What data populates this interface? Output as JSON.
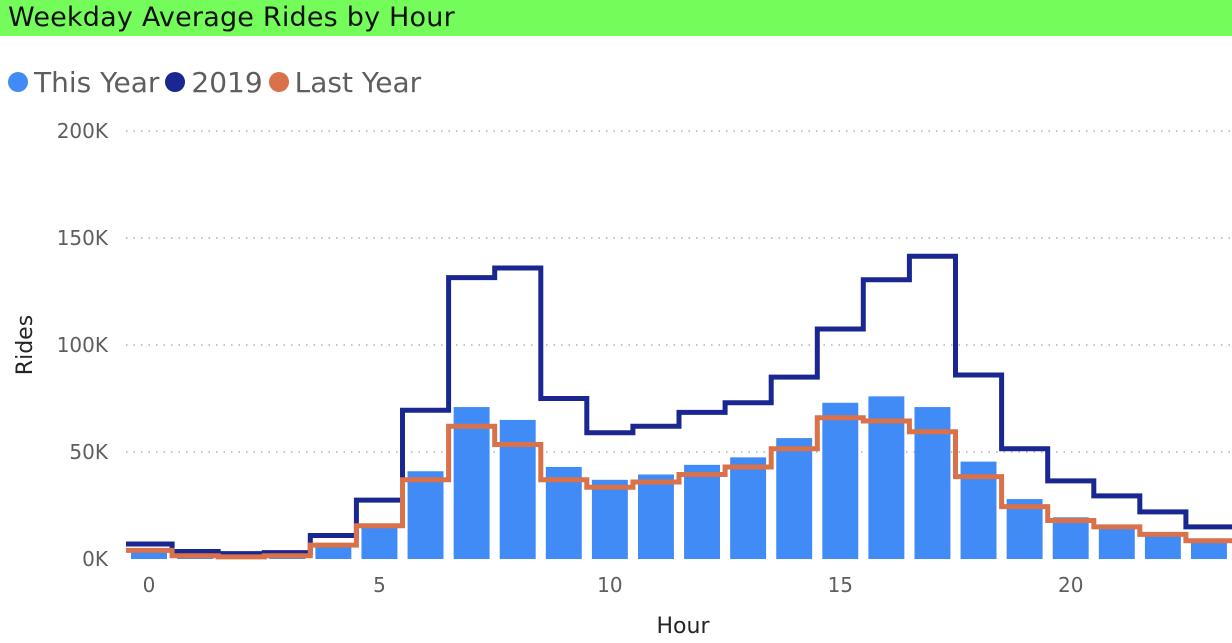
{
  "chart_data": {
    "type": "bar",
    "title": "Weekday Average Rides by Hour",
    "xlabel": "Hour",
    "ylabel": "Rides",
    "x": [
      0,
      1,
      2,
      3,
      4,
      5,
      6,
      7,
      8,
      9,
      10,
      11,
      12,
      13,
      14,
      15,
      16,
      17,
      18,
      19,
      20,
      21,
      22,
      23
    ],
    "x_ticks": [
      0,
      5,
      10,
      15,
      20
    ],
    "x_tick_labels": [
      "0",
      "5",
      "10",
      "15",
      "20"
    ],
    "y_ticks": [
      0,
      50000,
      100000,
      150000,
      200000
    ],
    "y_tick_labels": [
      "0K",
      "50K",
      "100K",
      "150K",
      "200K"
    ],
    "ylim": [
      0,
      200000
    ],
    "grid": "horizontal dotted",
    "legend_position": "top-left",
    "series": [
      {
        "name": "This Year",
        "kind": "bar",
        "color": "#418bf7",
        "values": [
          4000,
          2000,
          1500,
          2000,
          7500,
          16000,
          41000,
          71000,
          65000,
          43000,
          37000,
          39500,
          44000,
          47500,
          56500,
          73000,
          76000,
          71000,
          45500,
          28000,
          19500,
          16000,
          12000,
          9000
        ]
      },
      {
        "name": "2019",
        "kind": "step",
        "color": "#1a2791",
        "values": [
          7000,
          3500,
          2500,
          3000,
          11000,
          27500,
          69500,
          131500,
          136000,
          75000,
          59000,
          62000,
          68500,
          73000,
          85000,
          107500,
          130500,
          141500,
          86000,
          51500,
          36500,
          29500,
          22000,
          15000
        ]
      },
      {
        "name": "Last Year",
        "kind": "step",
        "color": "#d9714a",
        "values": [
          4000,
          1500,
          1000,
          1500,
          6500,
          15500,
          37000,
          62000,
          53500,
          37000,
          33500,
          36000,
          39500,
          43000,
          51500,
          66000,
          64500,
          59500,
          38500,
          24500,
          18000,
          15000,
          11500,
          8500
        ]
      }
    ]
  }
}
